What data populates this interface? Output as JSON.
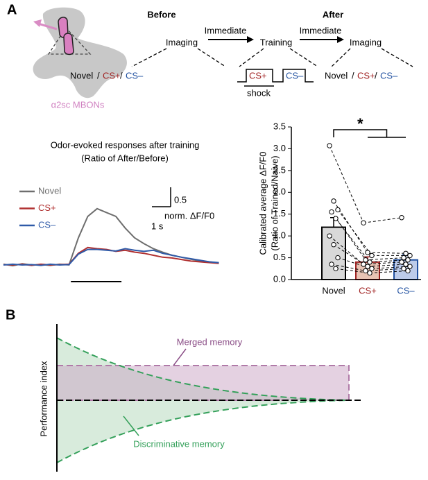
{
  "panel_a": {
    "label": "A",
    "schematic": {
      "label": "α2sc MBONs"
    },
    "protocol": {
      "before": "Before",
      "after": "After",
      "steps": [
        "Imaging",
        "Training",
        "Imaging"
      ],
      "transitions": [
        "Immediate",
        "Immediate"
      ],
      "odors": [
        "Novel",
        "CS+",
        "CS–"
      ],
      "separator": "/",
      "training_odors": [
        "CS+",
        "CS–"
      ],
      "shock": "shock"
    }
  },
  "chart_data": [
    {
      "type": "line",
      "title": "Odor-evoked responses after training",
      "subtitle": "(Ratio of After/Before)",
      "x": [
        0,
        0.5,
        1,
        1.5,
        2,
        2.5,
        3,
        3.5,
        4,
        4.5,
        5,
        5.5,
        6,
        6.5,
        7,
        7.5,
        8,
        8.5,
        9,
        9.5,
        10,
        10.5,
        11,
        11.5
      ],
      "series": [
        {
          "name": "Novel",
          "color": "#6e6e6e",
          "values": [
            0.02,
            -0.02,
            0.03,
            0,
            0.01,
            -0.01,
            0.02,
            0,
            0.7,
            1.25,
            1.45,
            1.35,
            1.25,
            0.95,
            0.7,
            0.55,
            0.42,
            0.33,
            0.25,
            0.2,
            0.15,
            0.1,
            0.08,
            0.05
          ]
        },
        {
          "name": "CS+",
          "color": "#b03030",
          "values": [
            0.01,
            0,
            0.02,
            -0.01,
            0.02,
            0,
            0.01,
            0.02,
            0.3,
            0.45,
            0.42,
            0.4,
            0.35,
            0.38,
            0.33,
            0.3,
            0.25,
            0.2,
            0.18,
            0.14,
            0.1,
            0.08,
            0.06,
            0.04
          ]
        },
        {
          "name": "CS–",
          "color": "#2f5aa8",
          "values": [
            0,
            0.02,
            0,
            0.01,
            -0.01,
            0.02,
            0,
            0.01,
            0.28,
            0.4,
            0.4,
            0.38,
            0.36,
            0.42,
            0.38,
            0.35,
            0.38,
            0.3,
            0.25,
            0.2,
            0.16,
            0.12,
            0.08,
            0.06
          ]
        }
      ],
      "scale_bar": {
        "y": 0.5,
        "y_unit": "norm. ΔF/F0",
        "x": {
          "value": 1,
          "label": "1 s"
        }
      },
      "odor_window": [
        3.6,
        6.3
      ]
    },
    {
      "type": "bar",
      "ylabel": "Calibrated average ΔF/F0",
      "ylabel2": "(Ratio of Trained/Naive)",
      "categories": [
        "Novel",
        "CS+",
        "CS–"
      ],
      "category_colors": [
        "#000000",
        "#a02020",
        "#2050a0"
      ],
      "values": [
        1.2,
        0.4,
        0.45
      ],
      "errors": [
        0.22,
        0.12,
        0.12
      ],
      "colors": [
        "#d9d9d9",
        "#e8c3b4",
        "#bccbea"
      ],
      "edge_colors": [
        "#000000",
        "#a02020",
        "#2050a0"
      ],
      "points": [
        [
          3.07,
          1.8,
          1.6,
          1.55,
          1.4,
          1.0,
          0.8,
          0.5,
          0.35,
          0.25
        ],
        [
          1.3,
          0.62,
          0.55,
          0.45,
          0.4,
          0.35,
          0.3,
          0.25,
          0.2,
          0.15
        ],
        [
          1.42,
          0.6,
          0.55,
          0.5,
          0.45,
          0.4,
          0.35,
          0.3,
          0.25,
          0.2
        ]
      ],
      "ylim": [
        0,
        3.5
      ],
      "yticks": [
        {
          "value": 0,
          "label": "0.0"
        },
        {
          "value": 0.5,
          "label": "0.5"
        },
        {
          "value": 1,
          "label": "1.0"
        },
        {
          "value": 1.5,
          "label": "1.5"
        },
        {
          "value": 2,
          "label": "2.0"
        },
        {
          "value": 2.5,
          "label": "2.5"
        },
        {
          "value": 3,
          "label": "3.0"
        },
        {
          "value": 3.5,
          "label": "3.5"
        }
      ],
      "significance": "*"
    }
  ],
  "panel_b": {
    "label": "B",
    "y_label": "Performance index",
    "merged": "Merged memory",
    "discriminative": "Discriminative memory"
  }
}
